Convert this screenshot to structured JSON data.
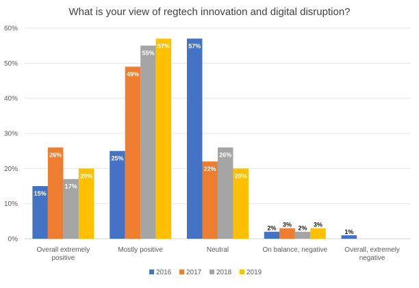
{
  "chart_data": {
    "type": "bar",
    "title": "What is your view of regtech innovation and digital disruption?",
    "categories": [
      [
        "Overall extremely",
        "positive"
      ],
      [
        "Mostly positive"
      ],
      [
        "Neutral"
      ],
      [
        "On balance, negative"
      ],
      [
        "Overall, extremely",
        "negative"
      ]
    ],
    "series": [
      {
        "name": "2016",
        "color": "#4472C4",
        "values": [
          15,
          25,
          57,
          2,
          1
        ],
        "labels": [
          "15%",
          "25%",
          "57%",
          "2%",
          "1%"
        ]
      },
      {
        "name": "2017",
        "color": "#ED7D31",
        "values": [
          26,
          49,
          22,
          3,
          null
        ],
        "labels": [
          "26%",
          "49%",
          "22%",
          "3%",
          ""
        ]
      },
      {
        "name": "2018",
        "color": "#A5A5A5",
        "values": [
          17,
          55,
          26,
          2,
          null
        ],
        "labels": [
          "17%",
          "55%",
          "26%",
          "2%",
          ""
        ]
      },
      {
        "name": "2019",
        "color": "#FFC000",
        "values": [
          20,
          57,
          20,
          3,
          null
        ],
        "labels": [
          "20%",
          "57%",
          "20%",
          "3%",
          ""
        ]
      }
    ],
    "ylim": [
      0,
      60
    ],
    "yticks": [
      "0%",
      "10%",
      "20%",
      "30%",
      "40%",
      "50%",
      "60%"
    ],
    "grid": true,
    "legend_position": "bottom"
  }
}
